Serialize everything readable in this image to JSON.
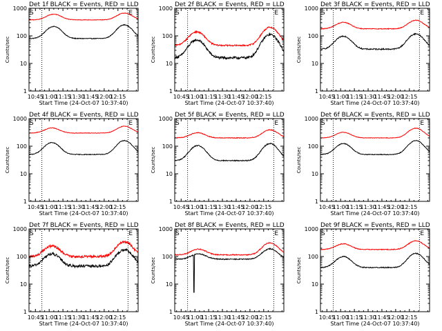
{
  "colors": {
    "events": "#000000",
    "lld": "#ff0000",
    "background": "#ffffff",
    "axis": "#000000"
  },
  "chart_data": [
    {
      "type": "line",
      "title": "Det 1f BLACK = Events, RED = LLD",
      "xlabel": "Start Time (24-Oct-07 10:37:40)",
      "ylabel": "Counts/sec",
      "x_ticks": [
        "10:45",
        "11:00",
        "11:15",
        "11:30",
        "11:45",
        "12:00",
        "12:15"
      ],
      "y_ticks": [
        "1",
        "10",
        "100",
        "1000"
      ],
      "ylim": [
        1,
        1000
      ],
      "y_scale": "log",
      "xlim_min": [
        38,
        157
      ],
      "markers": [
        {
          "label": "S",
          "x_min": 38
        },
        {
          "label": "E",
          "x_min": 146
        }
      ],
      "vlines_min": [
        52,
        146
      ],
      "series": [
        {
          "name": "Events",
          "base": 80,
          "peaks": [
            {
              "t": 65,
              "amp": 140
            },
            {
              "t": 142,
              "amp": 170
            }
          ],
          "noise": 0.03
        },
        {
          "name": "LLD",
          "base": 380,
          "peaks": [
            {
              "t": 65,
              "amp": 230
            },
            {
              "t": 142,
              "amp": 290
            }
          ],
          "noise": 0.02
        }
      ]
    },
    {
      "type": "line",
      "title": "Det 2f BLACK = Events, RED = LLD",
      "xlabel": "Start Time (24-Oct-07 10:37:40)",
      "ylabel": "Counts/sec",
      "x_ticks": [
        "10:45",
        "11:00",
        "11:15",
        "11:30",
        "11:45",
        "12:00",
        "12:15"
      ],
      "y_ticks": [
        "1",
        "10",
        "100",
        "1000"
      ],
      "ylim": [
        1,
        1000
      ],
      "y_scale": "log",
      "xlim_min": [
        38,
        157
      ],
      "markers": [
        {
          "label": "S",
          "x_min": 38
        },
        {
          "label": "E",
          "x_min": 146
        }
      ],
      "vlines_min": [
        52,
        146
      ],
      "series": [
        {
          "name": "Events",
          "base": 16,
          "peaks": [
            {
              "t": 62,
              "amp": 55
            },
            {
              "t": 142,
              "amp": 95
            }
          ],
          "noise": 0.1
        },
        {
          "name": "LLD",
          "base": 45,
          "peaks": [
            {
              "t": 62,
              "amp": 95
            },
            {
              "t": 142,
              "amp": 160
            }
          ],
          "noise": 0.06
        }
      ]
    },
    {
      "type": "line",
      "title": "Det 3f BLACK = Events, RED = LLD",
      "xlabel": "Start Time (24-Oct-07 10:37:40)",
      "ylabel": "Counts/sec",
      "x_ticks": [
        "10:45",
        "11:00",
        "11:15",
        "11:30",
        "11:45",
        "12:00",
        "12:15"
      ],
      "y_ticks": [
        "1",
        "10",
        "100",
        "1000"
      ],
      "ylim": [
        1,
        1000
      ],
      "y_scale": "log",
      "xlim_min": [
        38,
        157
      ],
      "markers": [
        {
          "label": "S",
          "x_min": 38
        },
        {
          "label": "E",
          "x_min": 146
        }
      ],
      "vlines_min": [
        52,
        146
      ],
      "series": [
        {
          "name": "Events",
          "base": 33,
          "peaks": [
            {
              "t": 63,
              "amp": 65
            },
            {
              "t": 142,
              "amp": 85
            }
          ],
          "noise": 0.05
        },
        {
          "name": "LLD",
          "base": 180,
          "peaks": [
            {
              "t": 63,
              "amp": 130
            },
            {
              "t": 142,
              "amp": 190
            }
          ],
          "noise": 0.03
        }
      ]
    },
    {
      "type": "line",
      "title": "Det 4f BLACK = Events, RED = LLD",
      "xlabel": "Start Time (24-Oct-07 10:37:40)",
      "ylabel": "Counts/sec",
      "x_ticks": [
        "10:45",
        "11:00",
        "11:15",
        "11:30",
        "11:45",
        "12:00",
        "12:15"
      ],
      "y_ticks": [
        "1",
        "10",
        "100",
        "1000"
      ],
      "ylim": [
        1,
        1000
      ],
      "y_scale": "log",
      "xlim_min": [
        38,
        157
      ],
      "markers": [
        {
          "label": "S",
          "x_min": 38
        },
        {
          "label": "E",
          "x_min": 146
        }
      ],
      "vlines_min": [
        52,
        146
      ],
      "series": [
        {
          "name": "Events",
          "base": 50,
          "peaks": [
            {
              "t": 63,
              "amp": 85
            },
            {
              "t": 142,
              "amp": 110
            }
          ],
          "noise": 0.03
        },
        {
          "name": "LLD",
          "base": 300,
          "peaks": [
            {
              "t": 63,
              "amp": 160
            },
            {
              "t": 142,
              "amp": 230
            }
          ],
          "noise": 0.02
        }
      ]
    },
    {
      "type": "line",
      "title": "Det 5f BLACK = Events, RED = LLD",
      "xlabel": "Start Time (24-Oct-07 10:37:40)",
      "ylabel": "Counts/sec",
      "x_ticks": [
        "10:45",
        "11:00",
        "11:15",
        "11:30",
        "11:45",
        "12:00",
        "12:15"
      ],
      "y_ticks": [
        "1",
        "10",
        "100",
        "1000"
      ],
      "ylim": [
        1,
        1000
      ],
      "y_scale": "log",
      "xlim_min": [
        38,
        157
      ],
      "markers": [
        {
          "label": "S",
          "x_min": 38
        },
        {
          "label": "E",
          "x_min": 146
        }
      ],
      "vlines_min": [
        52,
        146
      ],
      "series": [
        {
          "name": "Events",
          "base": 30,
          "peaks": [
            {
              "t": 63,
              "amp": 75
            },
            {
              "t": 142,
              "amp": 95
            }
          ],
          "noise": 0.04
        },
        {
          "name": "LLD",
          "base": 200,
          "peaks": [
            {
              "t": 63,
              "amp": 110
            },
            {
              "t": 142,
              "amp": 190
            }
          ],
          "noise": 0.03
        }
      ]
    },
    {
      "type": "line",
      "title": "Det 6f BLACK = Events, RED = LLD",
      "xlabel": "Start Time (24-Oct-07 10:37:40)",
      "ylabel": "Counts/sec",
      "x_ticks": [
        "10:45",
        "11:00",
        "11:15",
        "11:30",
        "11:45",
        "12:00",
        "12:15"
      ],
      "y_ticks": [
        "1",
        "10",
        "100",
        "1000"
      ],
      "ylim": [
        1,
        1000
      ],
      "y_scale": "log",
      "xlim_min": [
        38,
        157
      ],
      "markers": [
        {
          "label": "S",
          "x_min": 38
        },
        {
          "label": "E",
          "x_min": 146
        }
      ],
      "vlines_min": [
        52,
        146
      ],
      "series": [
        {
          "name": "Events",
          "base": 50,
          "peaks": [
            {
              "t": 63,
              "amp": 75
            },
            {
              "t": 142,
              "amp": 110
            }
          ],
          "noise": 0.03
        },
        {
          "name": "LLD",
          "base": 200,
          "peaks": [
            {
              "t": 63,
              "amp": 120
            },
            {
              "t": 142,
              "amp": 250
            }
          ],
          "noise": 0.02
        }
      ]
    },
    {
      "type": "line",
      "title": "Det 7f BLACK = Events, RED = LLD",
      "xlabel": "Start Time (24-Oct-07 10:37:40)",
      "ylabel": "Counts/sec",
      "x_ticks": [
        "10:45",
        "11:00",
        "11:15",
        "11:30",
        "11:45",
        "12:00",
        "12:15"
      ],
      "y_ticks": [
        "1",
        "10",
        "100",
        "1000"
      ],
      "ylim": [
        1,
        1000
      ],
      "y_scale": "log",
      "xlim_min": [
        38,
        157
      ],
      "markers": [
        {
          "label": "S",
          "x_min": 38
        },
        {
          "label": "E",
          "x_min": 146
        }
      ],
      "vlines_min": [
        52,
        146
      ],
      "series": [
        {
          "name": "Events",
          "base": 45,
          "peaks": [
            {
              "t": 63,
              "amp": 80
            },
            {
              "t": 142,
              "amp": 130
            }
          ],
          "noise": 0.12
        },
        {
          "name": "LLD",
          "base": 100,
          "peaks": [
            {
              "t": 63,
              "amp": 140
            },
            {
              "t": 142,
              "amp": 240
            }
          ],
          "noise": 0.1
        }
      ]
    },
    {
      "type": "line",
      "title": "Det 8f BLACK = Events, RED = LLD",
      "xlabel": "Start Time (24-Oct-07 10:37:40)",
      "ylabel": "Counts/sec",
      "x_ticks": [
        "10:45",
        "11:00",
        "11:15",
        "11:30",
        "11:45",
        "12:00",
        "12:15"
      ],
      "y_ticks": [
        "1",
        "10",
        "100",
        "1000"
      ],
      "ylim": [
        1,
        1000
      ],
      "y_scale": "log",
      "xlim_min": [
        38,
        157
      ],
      "markers": [
        {
          "label": "S",
          "x_min": 38
        },
        {
          "label": "E",
          "x_min": 146
        }
      ],
      "vlines_min": [
        52,
        146
      ],
      "dropout": {
        "start_min": 58.5,
        "end_min": 59.3,
        "value": 5
      },
      "series": [
        {
          "name": "Events",
          "base": 80,
          "peaks": [
            {
              "t": 64,
              "amp": 45
            },
            {
              "t": 142,
              "amp": 110
            }
          ],
          "noise": 0.04
        },
        {
          "name": "LLD",
          "base": 115,
          "peaks": [
            {
              "t": 64,
              "amp": 70
            },
            {
              "t": 142,
              "amp": 200
            }
          ],
          "noise": 0.04
        }
      ]
    },
    {
      "type": "line",
      "title": "Det 9f BLACK = Events, RED = LLD",
      "xlabel": "Start Time (24-Oct-07 10:37:40)",
      "ylabel": "Counts/sec",
      "x_ticks": [
        "10:45",
        "11:00",
        "11:15",
        "11:30",
        "11:45",
        "12:00",
        "12:15"
      ],
      "y_ticks": [
        "1",
        "10",
        "100",
        "1000"
      ],
      "ylim": [
        1,
        1000
      ],
      "y_scale": "log",
      "xlim_min": [
        38,
        157
      ],
      "markers": [
        {
          "label": "S",
          "x_min": 38
        },
        {
          "label": "E",
          "x_min": 146
        }
      ],
      "vlines_min": [
        52,
        146
      ],
      "series": [
        {
          "name": "Events",
          "base": 40,
          "peaks": [
            {
              "t": 63,
              "amp": 60
            },
            {
              "t": 142,
              "amp": 90
            }
          ],
          "noise": 0.04
        },
        {
          "name": "LLD",
          "base": 180,
          "peaks": [
            {
              "t": 63,
              "amp": 110
            },
            {
              "t": 142,
              "amp": 190
            }
          ],
          "noise": 0.03
        }
      ]
    }
  ]
}
